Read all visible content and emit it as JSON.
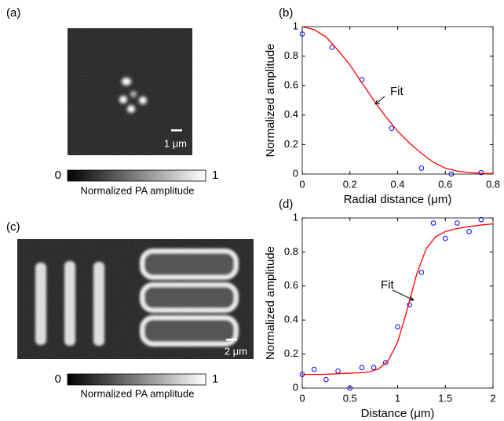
{
  "images": [
    {
      "panel_label": "(a)",
      "scale_bar": "1 μm",
      "colorbar": {
        "min": 0,
        "max": 1,
        "label": "Normalized PA amplitude"
      }
    },
    {
      "panel_label": "(c)",
      "scale_bar": "2 μm",
      "colorbar": {
        "min": 0,
        "max": 1,
        "label": "Normalized PA amplitude"
      }
    }
  ],
  "chart_data": [
    {
      "type": "scatter",
      "panel_label": "(b)",
      "xlabel": "Radial distance (μm)",
      "ylabel": "Normalized amplitude",
      "annotation": "Fit",
      "xlim": [
        0,
        0.8
      ],
      "xticks": [
        0,
        0.2,
        0.4,
        0.6,
        0.8
      ],
      "ylim": [
        0,
        1
      ],
      "yticks": [
        0,
        0.2,
        0.4,
        0.6,
        0.8,
        1
      ],
      "series": [
        {
          "type": "scatter",
          "color": "#0000ff",
          "x": [
            0,
            0.125,
            0.25,
            0.375,
            0.5,
            0.625,
            0.75
          ],
          "values": [
            0.95,
            0.86,
            0.64,
            0.31,
            0.04,
            0.0,
            0.01
          ]
        },
        {
          "type": "line",
          "color": "#ff0000",
          "x": [
            0,
            0.05,
            0.1,
            0.15,
            0.2,
            0.25,
            0.3,
            0.35,
            0.4,
            0.45,
            0.5,
            0.55,
            0.6,
            0.65,
            0.7,
            0.75,
            0.8
          ],
          "values": [
            1,
            0.98,
            0.93,
            0.84,
            0.74,
            0.62,
            0.5,
            0.39,
            0.29,
            0.21,
            0.14,
            0.08,
            0.04,
            0.02,
            0.01,
            0.005,
            0.003
          ]
        }
      ]
    },
    {
      "type": "scatter",
      "panel_label": "(d)",
      "xlabel": "Distance (μm)",
      "ylabel": "Normalized amplitude",
      "annotation": "Fit",
      "xlim": [
        0,
        2
      ],
      "xticks": [
        0,
        0.5,
        1,
        1.5,
        2
      ],
      "ylim": [
        0,
        1
      ],
      "yticks": [
        0,
        0.2,
        0.4,
        0.6,
        0.8,
        1
      ],
      "series": [
        {
          "type": "scatter",
          "color": "#0000ff",
          "x": [
            0,
            0.125,
            0.25,
            0.375,
            0.5,
            0.625,
            0.75,
            0.875,
            1.0,
            1.125,
            1.25,
            1.375,
            1.5,
            1.625,
            1.75,
            1.875
          ],
          "values": [
            0.08,
            0.11,
            0.05,
            0.1,
            0.0,
            0.12,
            0.12,
            0.15,
            0.36,
            0.49,
            0.68,
            0.97,
            0.88,
            0.97,
            0.92,
            0.99
          ]
        },
        {
          "type": "line",
          "color": "#ff0000",
          "x": [
            0,
            0.2,
            0.4,
            0.6,
            0.7,
            0.8,
            0.9,
            1.0,
            1.1,
            1.2,
            1.3,
            1.4,
            1.5,
            1.6,
            1.7,
            1.8,
            1.9,
            2.0
          ],
          "values": [
            0.08,
            0.08,
            0.085,
            0.09,
            0.095,
            0.112,
            0.16,
            0.27,
            0.46,
            0.67,
            0.82,
            0.89,
            0.92,
            0.935,
            0.945,
            0.953,
            0.96,
            0.965
          ]
        }
      ]
    }
  ]
}
